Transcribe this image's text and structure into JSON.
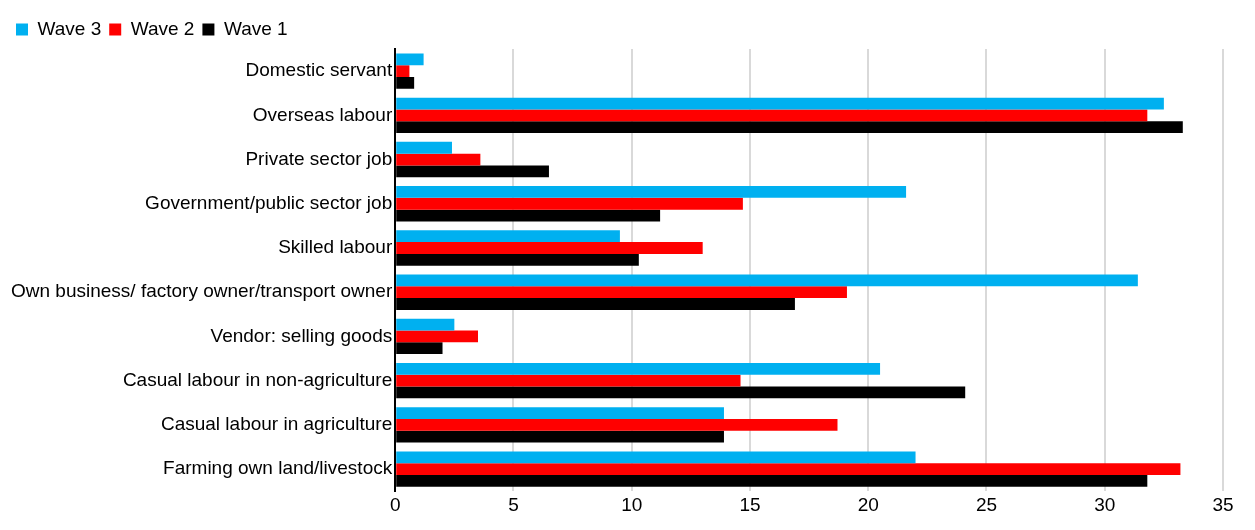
{
  "chart_data": {
    "type": "bar",
    "orientation": "horizontal",
    "categories": [
      "Domestic servant",
      "Overseas labour",
      "Private sector job",
      "Government/public sector job",
      "Skilled labour",
      "Own business/ factory owner/transport owner",
      "Vendor: selling goods",
      "Casual labour in non-agriculture",
      "Casual labour in agriculture",
      "Farming own land/livestock"
    ],
    "series": [
      {
        "name": "Wave 3",
        "color": "#00b0f0",
        "values": [
          1.2,
          32.5,
          2.4,
          21.6,
          9.5,
          31.4,
          2.5,
          20.5,
          13.9,
          22.0
        ]
      },
      {
        "name": "Wave 2",
        "color": "#ff0000",
        "values": [
          0.6,
          31.8,
          3.6,
          14.7,
          13.0,
          19.1,
          3.5,
          14.6,
          18.7,
          33.2
        ]
      },
      {
        "name": "Wave 1",
        "color": "#000000",
        "values": [
          0.8,
          33.3,
          6.5,
          11.2,
          10.3,
          16.9,
          2.0,
          24.1,
          13.9,
          31.8
        ]
      }
    ],
    "xlim": [
      0,
      35
    ],
    "xticks": [
      0,
      5,
      10,
      15,
      20,
      25,
      30,
      35
    ],
    "grid": "x",
    "legend": "top left"
  }
}
